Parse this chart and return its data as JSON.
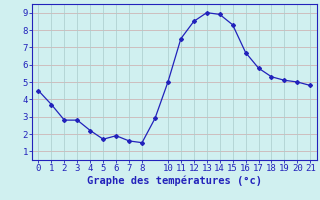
{
  "x": [
    0,
    1,
    2,
    3,
    4,
    5,
    6,
    7,
    8,
    9,
    10,
    11,
    12,
    13,
    14,
    15,
    16,
    17,
    18,
    19,
    20,
    21
  ],
  "y": [
    4.5,
    3.7,
    2.8,
    2.8,
    2.2,
    1.7,
    1.9,
    1.6,
    1.5,
    2.9,
    5.0,
    7.5,
    8.5,
    9.0,
    8.9,
    8.3,
    6.7,
    5.8,
    5.3,
    5.1,
    5.0,
    4.8
  ],
  "line_color": "#2222bb",
  "marker_color": "#2222bb",
  "bg_color": "#d0f0f0",
  "grid_color_h": "#ccaaaa",
  "grid_color_v": "#aacccc",
  "axis_color": "#2222bb",
  "border_color": "#2222bb",
  "xlabel": "Graphe des températures (°c)",
  "xlim": [
    -0.5,
    21.5
  ],
  "ylim": [
    0.5,
    9.5
  ],
  "yticks": [
    1,
    2,
    3,
    4,
    5,
    6,
    7,
    8,
    9
  ],
  "xticks": [
    0,
    1,
    2,
    3,
    4,
    5,
    6,
    7,
    8,
    10,
    11,
    12,
    13,
    14,
    15,
    16,
    17,
    18,
    19,
    20,
    21
  ],
  "tick_fontsize": 6.5,
  "label_fontsize": 7.5
}
